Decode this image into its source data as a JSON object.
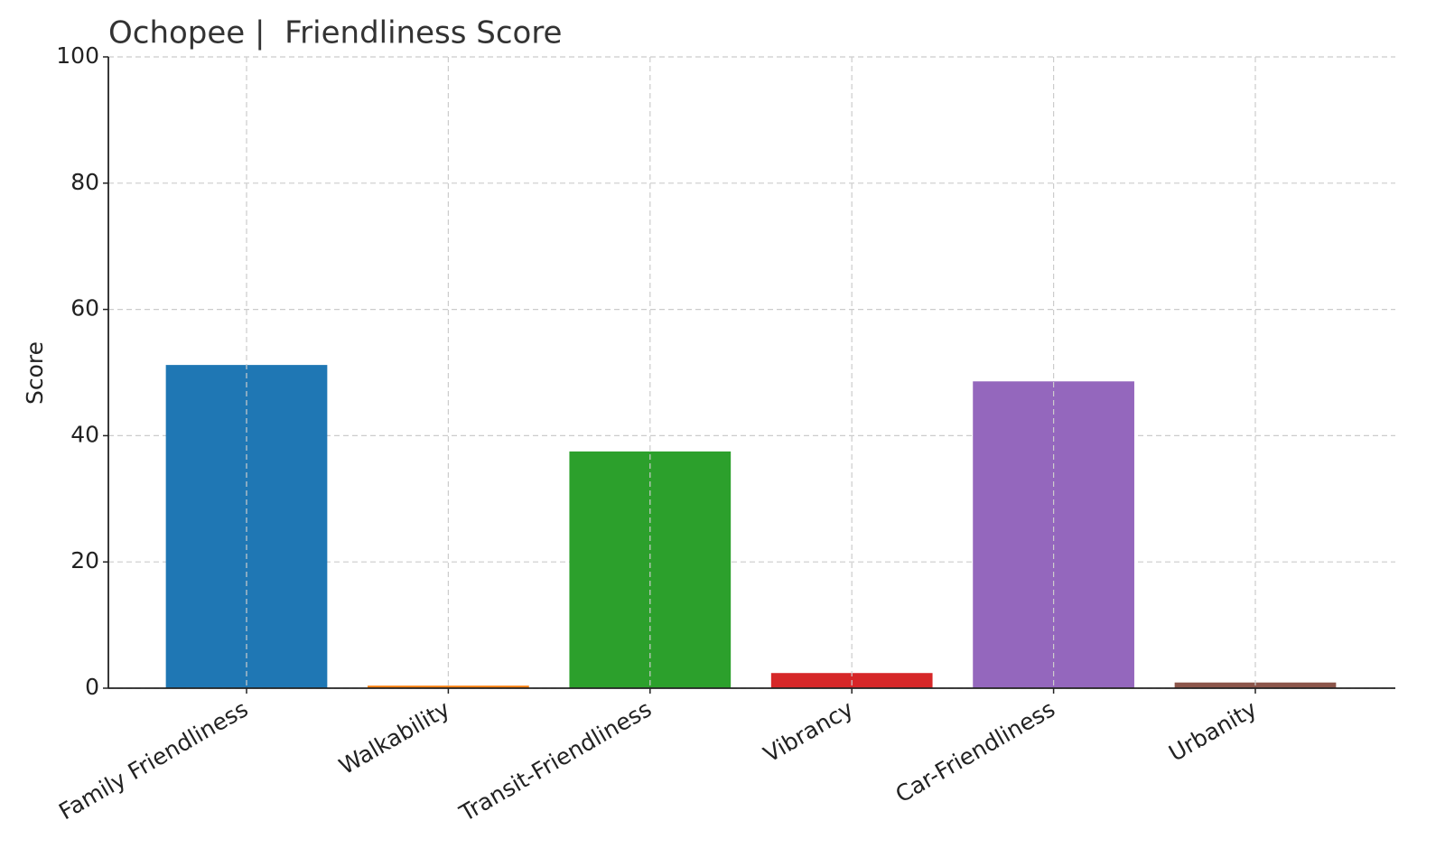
{
  "chart_data": {
    "type": "bar",
    "title": "Ochopee |  Friendliness Score",
    "y_label": "Score",
    "categories": [
      "Family Friendliness",
      "Walkability",
      "Transit-Friendliness",
      "Vibrancy",
      "Car-Friendliness",
      "Urbanity"
    ],
    "values": [
      51.2,
      0.4,
      37.5,
      2.4,
      48.6,
      0.9
    ],
    "colors": [
      "#1f77b4",
      "#ff7f0e",
      "#2ca02c",
      "#d62728",
      "#9467bd",
      "#8c564b"
    ],
    "ylim": [
      0,
      100
    ],
    "yticks": [
      0,
      20,
      40,
      60,
      80,
      100
    ],
    "grid": true
  }
}
